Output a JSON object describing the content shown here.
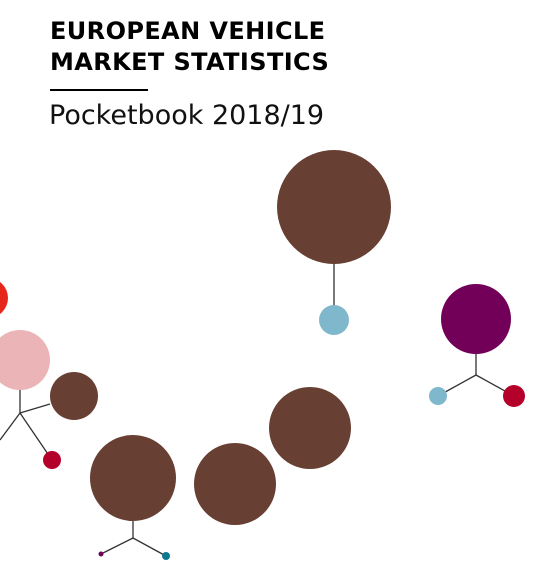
{
  "cover": {
    "title_line_1": "EUROPEAN VEHICLE",
    "title_line_2": "MARKET STATISTICS",
    "subtitle": "Pocketbook 2018/19"
  },
  "colors": {
    "brown": "#673f33",
    "red": "#e6261b",
    "pink": "#ebb4b7",
    "crimson": "#b5002b",
    "light_blue": "#7fb8cd",
    "purple": "#720058",
    "teal": "#0b7a90",
    "line": "#333333"
  }
}
